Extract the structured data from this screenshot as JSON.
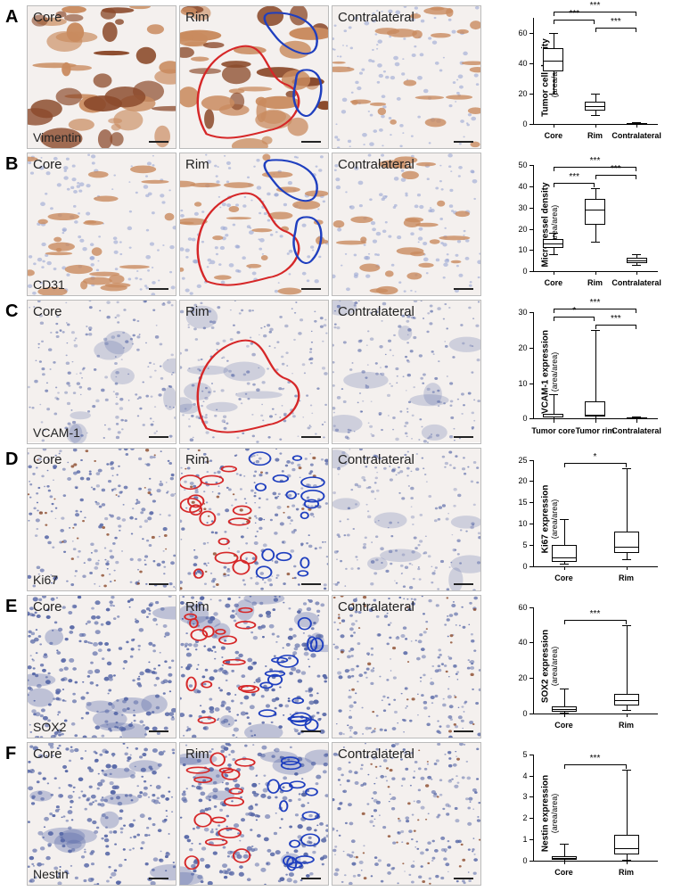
{
  "figure": {
    "panels": [
      {
        "letter": "A",
        "marker": "Vimentin",
        "regions": [
          "Core",
          "Rim",
          "Contralateral"
        ],
        "tissue_style": "brown-heavy",
        "rim_annotation": "outlines",
        "outline_colors": [
          "#d62728",
          "#1f3fbf"
        ],
        "chart": {
          "ylabel": "Tumor cell density",
          "ysub": "(area/area)",
          "ylim": [
            0,
            70
          ],
          "ytick_step": 20,
          "categories": [
            "Core",
            "Rim",
            "Contralateral"
          ],
          "boxes": [
            {
              "q1": 35,
              "median": 42,
              "q3": 50,
              "lo": 20,
              "hi": 60
            },
            {
              "q1": 9,
              "median": 12,
              "q3": 15,
              "lo": 6,
              "hi": 20
            },
            {
              "q1": 0.3,
              "median": 0.5,
              "q3": 0.8,
              "lo": 0.1,
              "hi": 1.2
            }
          ],
          "sig": [
            {
              "from": 0,
              "to": 1,
              "label": "***",
              "level": 1
            },
            {
              "from": 1,
              "to": 2,
              "label": "***",
              "level": 0
            },
            {
              "from": 0,
              "to": 2,
              "label": "***",
              "level": 2
            }
          ]
        }
      },
      {
        "letter": "B",
        "marker": "CD31",
        "regions": [
          "Core",
          "Rim",
          "Contralateral"
        ],
        "tissue_style": "brown-sparse",
        "rim_annotation": "outlines",
        "outline_colors": [
          "#d62728",
          "#1f3fbf"
        ],
        "chart": {
          "ylabel": "Microvessel density",
          "ysub": "(area/area)",
          "ylim": [
            0,
            50
          ],
          "ytick_step": 10,
          "categories": [
            "Core",
            "Rim",
            "Contralateral"
          ],
          "boxes": [
            {
              "q1": 11,
              "median": 13,
              "q3": 15,
              "lo": 8,
              "hi": 18
            },
            {
              "q1": 22,
              "median": 29,
              "q3": 34,
              "lo": 14,
              "hi": 39
            },
            {
              "q1": 4,
              "median": 5,
              "q3": 6.5,
              "lo": 3,
              "hi": 8
            }
          ],
          "sig": [
            {
              "from": 0,
              "to": 1,
              "label": "***",
              "level": 0
            },
            {
              "from": 1,
              "to": 2,
              "label": "***",
              "level": 1
            },
            {
              "from": 0,
              "to": 2,
              "label": "***",
              "level": 2
            }
          ]
        }
      },
      {
        "letter": "C",
        "marker": "VCAM-1",
        "regions": [
          "Core",
          "Rim",
          "Contralateral"
        ],
        "tissue_style": "blue-light",
        "rim_annotation": "outlines",
        "outline_colors": [
          "#d62728"
        ],
        "chart": {
          "ylabel": "VCAM-1 expression",
          "ysub": "(area/area)",
          "ylim": [
            0,
            30
          ],
          "ytick_step": 10,
          "categories": [
            "Tumor core",
            "Tumor rim",
            "Contralateral"
          ],
          "boxes": [
            {
              "q1": 0.3,
              "median": 0.6,
              "q3": 1.4,
              "lo": 0.1,
              "hi": 7
            },
            {
              "q1": 0.5,
              "median": 1.0,
              "q3": 4.8,
              "lo": 0.2,
              "hi": 25
            },
            {
              "q1": 0.1,
              "median": 0.2,
              "q3": 0.3,
              "lo": 0.05,
              "hi": 0.6
            }
          ],
          "sig": [
            {
              "from": 0,
              "to": 1,
              "label": "*",
              "level": 1
            },
            {
              "from": 1,
              "to": 2,
              "label": "***",
              "level": 0
            },
            {
              "from": 0,
              "to": 2,
              "label": "***",
              "level": 2
            }
          ]
        }
      },
      {
        "letter": "D",
        "marker": "Ki67",
        "regions": [
          "Core",
          "Rim",
          "Contralateral"
        ],
        "tissue_style": "blue-dots",
        "rim_annotation": "loops",
        "outline_colors": [
          "#d62728",
          "#1f3fbf"
        ],
        "chart": {
          "ylabel": "Ki67 expression",
          "ysub": "(area/area)",
          "ylim": [
            0,
            25
          ],
          "ytick_step": 5,
          "categories": [
            "Core",
            "Rim"
          ],
          "boxes": [
            {
              "q1": 1.0,
              "median": 2.0,
              "q3": 5.0,
              "lo": 0.5,
              "hi": 11
            },
            {
              "q1": 3.0,
              "median": 4.5,
              "q3": 8.0,
              "lo": 1.5,
              "hi": 23
            }
          ],
          "sig": [
            {
              "from": 0,
              "to": 1,
              "label": "*",
              "level": 0
            }
          ]
        }
      },
      {
        "letter": "E",
        "marker": "SOX2",
        "regions": [
          "Core",
          "Rim",
          "Contralateral"
        ],
        "tissue_style": "blue-dense",
        "rim_annotation": "loops",
        "outline_colors": [
          "#d62728",
          "#1f3fbf"
        ],
        "chart": {
          "ylabel": "SOX2 expression",
          "ysub": "(area/area)",
          "ylim": [
            0,
            60
          ],
          "ytick_step": 20,
          "categories": [
            "Core",
            "Rim"
          ],
          "boxes": [
            {
              "q1": 1.0,
              "median": 2.5,
              "q3": 4.0,
              "lo": 0.3,
              "hi": 14
            },
            {
              "q1": 4.5,
              "median": 7.5,
              "q3": 11.0,
              "lo": 2.0,
              "hi": 50
            }
          ],
          "sig": [
            {
              "from": 0,
              "to": 1,
              "label": "***",
              "level": 0
            }
          ]
        }
      },
      {
        "letter": "F",
        "marker": "Nestin",
        "regions": [
          "Core",
          "Rim",
          "Contralateral"
        ],
        "tissue_style": "blue-dense",
        "rim_annotation": "loops",
        "outline_colors": [
          "#d62728",
          "#1f3fbf"
        ],
        "chart": {
          "ylabel": "Nestin expression",
          "ysub": "(area/area)",
          "ylim": [
            0,
            5
          ],
          "ytick_step": 1,
          "categories": [
            "Core",
            "Rim"
          ],
          "boxes": [
            {
              "q1": 0.05,
              "median": 0.12,
              "q3": 0.22,
              "lo": 0.01,
              "hi": 0.8
            },
            {
              "q1": 0.3,
              "median": 0.6,
              "q3": 1.2,
              "lo": 0.05,
              "hi": 4.3
            }
          ],
          "sig": [
            {
              "from": 0,
              "to": 1,
              "label": "***",
              "level": 0
            }
          ]
        }
      }
    ],
    "colors": {
      "brown_dark": "#8b4a2b",
      "brown_light": "#c98b5f",
      "hematoxylin": "#5a6aa8",
      "hematoxylin_light": "#9aa6d4",
      "bg_tissue": "#f4f0ee",
      "red_outline": "#d62728",
      "blue_outline": "#1f3fbf",
      "axis": "#000000"
    }
  }
}
